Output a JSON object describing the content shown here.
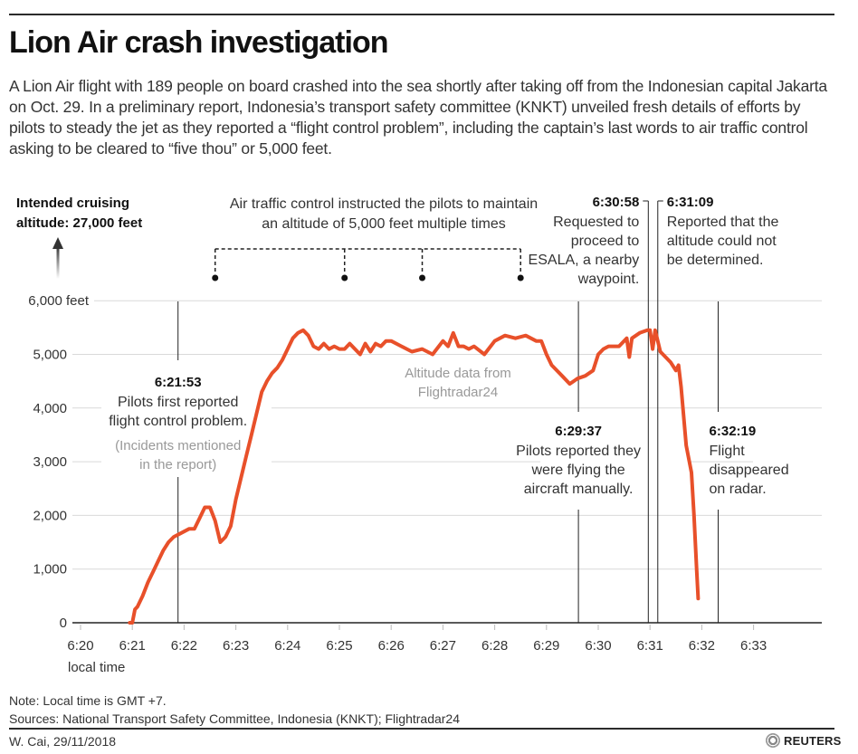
{
  "header": {
    "title": "Lion Air crash investigation",
    "subtitle": "A Lion Air flight with 189 people on board crashed into the sea shortly after taking off from the Indonesian capital Jakarta on Oct. 29. In a preliminary report, Indonesia’s transport safety committee (KNKT) unveiled fresh details of efforts by pilots to steady the jet as they reported a “flight control problem”, including the captain’s last words to air traffic control asking to be cleared to “five thou” or 5,000 feet."
  },
  "colors": {
    "line": "#e8502a",
    "text": "#222222",
    "muted": "#999999",
    "grid": "#d9d9d9"
  },
  "chart_data": {
    "type": "line",
    "title": "Lion Air crash investigation",
    "xlabel": "local time",
    "ylabel": "feet",
    "xlim": [
      6.3333,
      6.5583
    ],
    "ylim": [
      0,
      6000
    ],
    "grid": true,
    "x_ticks": [
      "6:20",
      "6:21",
      "6:22",
      "6:23",
      "6:24",
      "6:25",
      "6:26",
      "6:27",
      "6:28",
      "6:29",
      "6:30",
      "6:31",
      "6:32",
      "6:33"
    ],
    "y_ticks": [
      "0",
      "1,000",
      "2,000",
      "3,000",
      "4,000",
      "5,000",
      "6,000 feet"
    ],
    "series": [
      {
        "name": "Altitude data from Flightradar24",
        "x_minutes": [
          21.0,
          21.05,
          21.1,
          21.2,
          21.3,
          21.4,
          21.5,
          21.6,
          21.7,
          21.8,
          21.9,
          22.0,
          22.1,
          22.2,
          22.3,
          22.4,
          22.5,
          22.6,
          22.7,
          22.8,
          22.9,
          23.0,
          23.1,
          23.2,
          23.3,
          23.4,
          23.5,
          23.6,
          23.7,
          23.8,
          23.9,
          24.0,
          24.1,
          24.2,
          24.3,
          24.4,
          24.5,
          24.6,
          24.7,
          24.8,
          24.9,
          25.0,
          25.1,
          25.2,
          25.3,
          25.4,
          25.5,
          25.6,
          25.7,
          25.8,
          25.9,
          26.0,
          26.2,
          26.4,
          26.6,
          26.8,
          27.0,
          27.1,
          27.2,
          27.3,
          27.4,
          27.5,
          27.6,
          27.8,
          28.0,
          28.2,
          28.4,
          28.6,
          28.8,
          28.9,
          29.0,
          29.1,
          29.3,
          29.45,
          29.6,
          29.75,
          29.9,
          30.0,
          30.1,
          30.2,
          30.4,
          30.55,
          30.6,
          30.65,
          30.8,
          30.95,
          31.0,
          31.05,
          31.1,
          31.2,
          31.3,
          31.4,
          31.5,
          31.55,
          31.6,
          31.7,
          31.8,
          31.85,
          31.9,
          31.93
        ],
        "altitude_ft": [
          0,
          250,
          300,
          500,
          750,
          950,
          1150,
          1350,
          1500,
          1600,
          1650,
          1700,
          1750,
          1750,
          1950,
          2150,
          2150,
          1900,
          1500,
          1600,
          1800,
          2300,
          2700,
          3100,
          3500,
          3900,
          4300,
          4500,
          4650,
          4750,
          4900,
          5100,
          5300,
          5400,
          5450,
          5350,
          5150,
          5100,
          5200,
          5100,
          5150,
          5100,
          5100,
          5200,
          5100,
          5000,
          5200,
          5050,
          5200,
          5150,
          5250,
          5250,
          5150,
          5050,
          5100,
          5000,
          5250,
          5150,
          5400,
          5150,
          5150,
          5100,
          5150,
          5000,
          5250,
          5350,
          5300,
          5350,
          5250,
          5250,
          5000,
          4800,
          4600,
          4450,
          4550,
          4600,
          4700,
          5000,
          5100,
          5150,
          5150,
          5300,
          4950,
          5300,
          5400,
          5450,
          5450,
          5100,
          5450,
          5050,
          4950,
          4850,
          4700,
          4800,
          4400,
          3300,
          2800,
          2000,
          1000,
          450
        ]
      }
    ],
    "annotations": {
      "cruising": {
        "line1": "Intended cruising",
        "line2": "altitude: 27,000 feet"
      },
      "atc": {
        "line1": "Air traffic control instructed the pilots to maintain",
        "line2": "an altitude of 5,000 feet multiple times",
        "times_minutes": [
          22.6,
          25.1,
          26.6,
          28.5
        ]
      },
      "data_source": {
        "line1": "Altitude data from",
        "line2": "Flightradar24"
      },
      "events": [
        {
          "time": "6:21:53",
          "minute": 21.883,
          "lines": [
            "Pilots first reported",
            "flight control problem."
          ],
          "note": [
            "(Incidents mentioned",
            "in the report)"
          ]
        },
        {
          "time": "6:29:37",
          "minute": 29.617,
          "lines": [
            "Pilots reported they",
            "were flying the",
            "aircraft manually."
          ]
        },
        {
          "time": "6:30:58",
          "minute": 30.967,
          "lines": [
            "Requested to",
            "proceed to",
            "ESALA, a nearby",
            "waypoint."
          ]
        },
        {
          "time": "6:31:09",
          "minute": 31.15,
          "lines": [
            "Reported that the",
            "altitude could not",
            "be determined."
          ]
        },
        {
          "time": "6:32:19",
          "minute": 32.317,
          "lines": [
            "Flight",
            "disappeared",
            "on radar."
          ]
        }
      ]
    }
  },
  "footer": {
    "note": "Note: Local time is GMT +7.",
    "sources": "Sources: National Transport Safety Committee, Indonesia (KNKT); Flightradar24",
    "byline": "W. Cai,  29/11/2018",
    "logo": "REUTERS"
  }
}
